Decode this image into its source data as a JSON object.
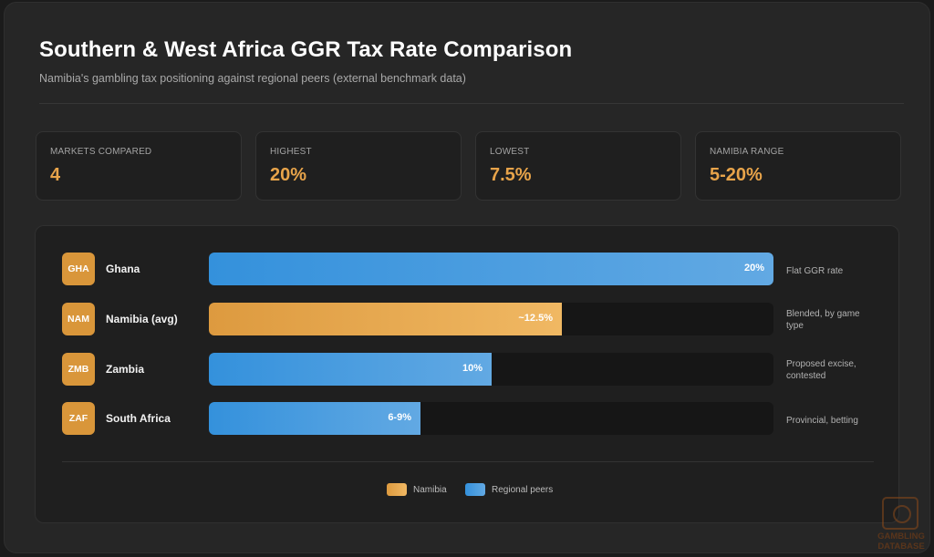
{
  "header": {
    "title": "Southern & West Africa GGR Tax Rate Comparison",
    "subtitle": "Namibia's gambling tax positioning against regional peers (external benchmark data)"
  },
  "stats": [
    {
      "label": "Markets Compared",
      "value": "4"
    },
    {
      "label": "Highest",
      "value": "20%"
    },
    {
      "label": "Lowest",
      "value": "7.5%"
    },
    {
      "label": "Namibia Range",
      "value": "5-20%"
    }
  ],
  "colors": {
    "accent": "#e8a44a",
    "namibia": "#e8a44a",
    "peers": "#4a9fe0",
    "badge": "#d9963a"
  },
  "chart_data": {
    "type": "bar",
    "orientation": "horizontal",
    "xlim": [
      0,
      20
    ],
    "categories": [
      "Ghana",
      "Namibia (avg)",
      "Zambia",
      "South Africa"
    ],
    "codes": [
      "GHA",
      "NAM",
      "ZMB",
      "ZAF"
    ],
    "values": [
      20,
      12.5,
      10,
      7.5
    ],
    "value_labels": [
      "20%",
      "~12.5%",
      "10%",
      "6-9%"
    ],
    "notes": [
      "Flat GGR rate",
      "Blended, by game type",
      "Proposed excise, contested",
      "Provincial, betting"
    ],
    "groups": [
      "peer",
      "namibia",
      "peer",
      "peer"
    ],
    "legend": [
      {
        "name": "Namibia",
        "color": "#e8a44a"
      },
      {
        "name": "Regional peers",
        "color": "#4a9fe0"
      }
    ],
    "legend_position": "bottom-center"
  },
  "watermark": {
    "line1": "GAMBLING",
    "line2": "DATABASE"
  }
}
